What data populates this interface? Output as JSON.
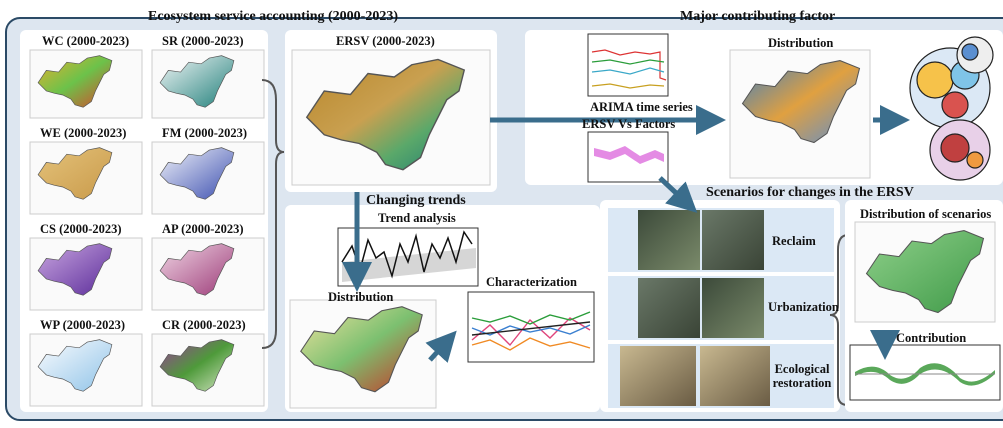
{
  "accounting": {
    "title": "Ecosystem service accounting (2000-2023)",
    "maps": [
      "WC (2000-2023)",
      "SR (2000-2023)",
      "WE (2000-2023)",
      "FM (2000-2023)",
      "CS (2000-2023)",
      "AP (2000-2023)",
      "WP (2000-2023)",
      "CR (2000-2023)"
    ],
    "ersv": "ERSV (2000-2023)"
  },
  "trends": {
    "title": "Changing trends",
    "trend_analysis": "Trend analysis",
    "distribution": "Distribution",
    "characterization": "Characterization"
  },
  "factors": {
    "title": "Major contributing factor",
    "arima": "ARIMA time series",
    "ersv_vs_factors": "ERSV Vs Factors",
    "distribution": "Distribution"
  },
  "scenarios": {
    "title": "Scenarios for changes in the ERSV",
    "items": [
      "Reclaim",
      "Urbanization",
      "Ecological restoration"
    ],
    "distribution": "Distribution of scenarios",
    "contribution": "Contribution"
  }
}
